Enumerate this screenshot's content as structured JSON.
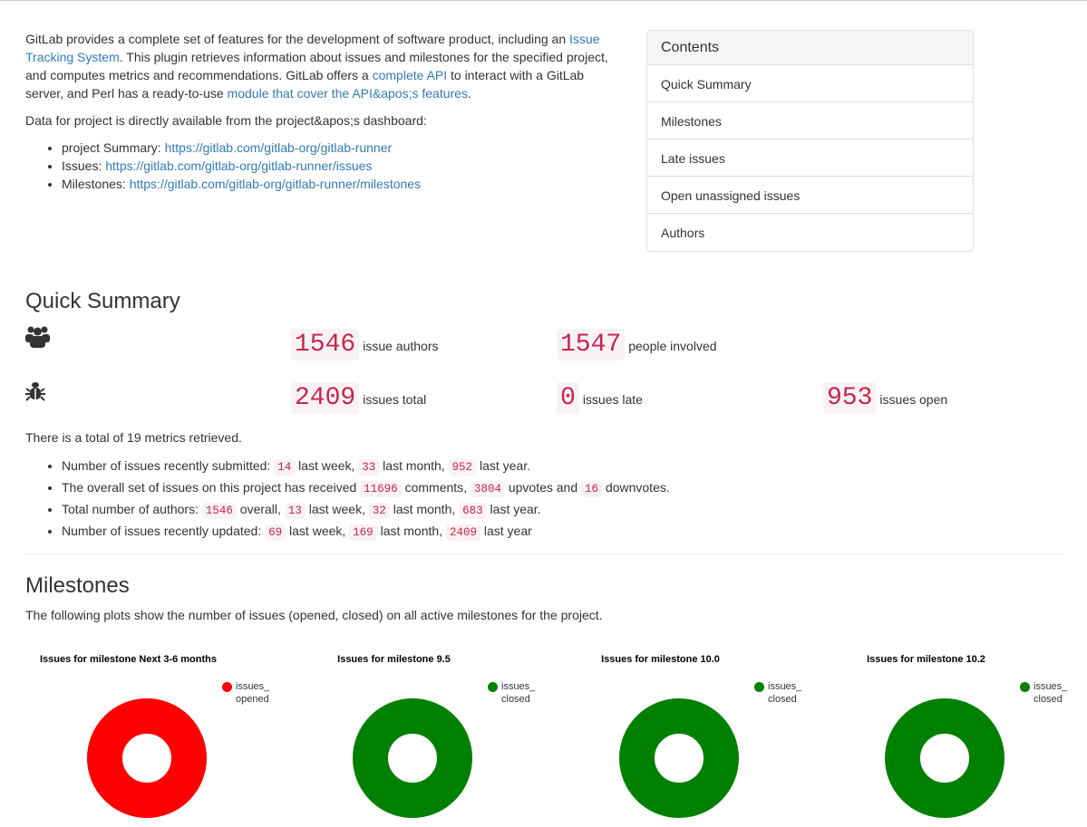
{
  "intro": {
    "p1_a": "GitLab provides a complete set of features for the development of software product, including an ",
    "p1_link1": "Issue Tracking System",
    "p1_b": ". This plugin retrieves information about issues and milestones for the specified project, and computes metrics and recommendations. GitLab offers a ",
    "p1_link2": "complete API",
    "p1_c": " to interact with a GitLab server, and Perl has a ready-to-use ",
    "p1_link3": "module that cover the API&apos;s features",
    "p1_d": ".",
    "p2": "Data for project is directly available from the project&apos;s dashboard:",
    "links": [
      {
        "label": "project Summary: ",
        "url": "https://gitlab.com/gitlab-org/gitlab-runner"
      },
      {
        "label": "Issues: ",
        "url": "https://gitlab.com/gitlab-org/gitlab-runner/issues"
      },
      {
        "label": "Milestones: ",
        "url": "https://gitlab.com/gitlab-org/gitlab-runner/milestones"
      }
    ]
  },
  "toc": {
    "title": "Contents",
    "items": [
      "Quick Summary",
      "Milestones",
      "Late issues",
      "Open unassigned issues",
      "Authors"
    ]
  },
  "summary": {
    "title": "Quick Summary",
    "icons": [
      "users-icon",
      "bug-icon"
    ],
    "stats": [
      {
        "value": "1546",
        "label": "issue authors"
      },
      {
        "value": "1547",
        "label": "people involved"
      },
      {
        "value": "2409",
        "label": "issues total"
      },
      {
        "value": "0",
        "label": "issues late"
      },
      {
        "value": "953",
        "label": "issues open"
      }
    ],
    "total": "There is a total of 19 metrics retrieved.",
    "l1": [
      "Number of issues recently submitted: ",
      "14",
      " last week, ",
      "33",
      " last month, ",
      "952",
      " last year."
    ],
    "l2": [
      "The overall set of issues on this project has received ",
      "11696",
      " comments, ",
      "3804",
      " upvotes and ",
      "16",
      " downvotes."
    ],
    "l3": [
      "Total number of authors: ",
      "1546",
      " overall, ",
      "13",
      " last week, ",
      "32",
      " last month, ",
      "683",
      " last year."
    ],
    "l4": [
      "Number of issues recently updated: ",
      "69",
      " last week, ",
      "169",
      " last month, ",
      "2409",
      " last year"
    ]
  },
  "milestones": {
    "title": "Milestones",
    "desc": "The following plots show the number of issues (opened, closed) on all active milestones for the project."
  },
  "colors": {
    "opened": "#ff0000",
    "closed": "#008000",
    "code": "#c7254e",
    "link": "#337ab7"
  },
  "chart_data": [
    {
      "type": "pie",
      "donut": true,
      "title": "Issues for milestone Next 3-6 months",
      "categories": [
        "issues_opened"
      ],
      "values": [
        100
      ],
      "unit": "percent share",
      "colors": [
        "#ff0000"
      ],
      "legend": "top-right"
    },
    {
      "type": "pie",
      "donut": true,
      "title": "Issues for milestone 9.5",
      "categories": [
        "issues_closed"
      ],
      "values": [
        100
      ],
      "unit": "percent share",
      "colors": [
        "#008000"
      ],
      "legend": "top-right"
    },
    {
      "type": "pie",
      "donut": true,
      "title": "Issues for milestone 10.0",
      "categories": [
        "issues_closed"
      ],
      "values": [
        100
      ],
      "unit": "percent share",
      "colors": [
        "#008000"
      ],
      "legend": "top-right"
    },
    {
      "type": "pie",
      "donut": true,
      "title": "Issues for milestone 10.2",
      "categories": [
        "issues_closed"
      ],
      "values": [
        100
      ],
      "unit": "percent share",
      "colors": [
        "#008000"
      ],
      "legend": "top-right"
    }
  ]
}
